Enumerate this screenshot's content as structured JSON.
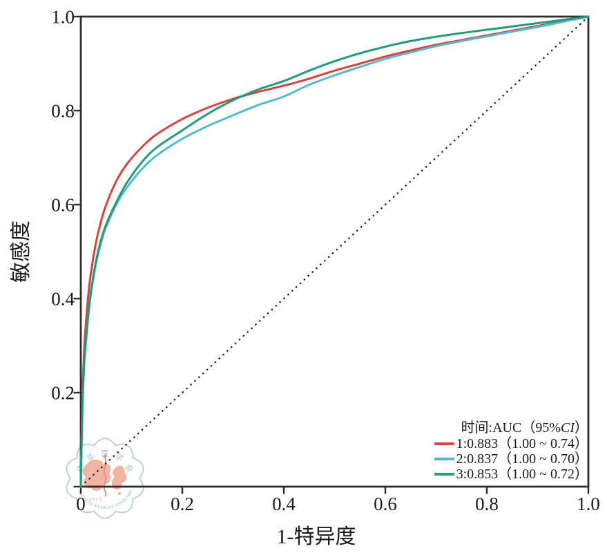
{
  "watermark": {
    "name": "chinese-medical-association-seal",
    "ring_text": "中华医学会",
    "bottom_text": "CHINESE MEDICAL ASSOCIATION",
    "year": "1915",
    "accent_color": "#f0ad99",
    "snake_color": "#d98b7a",
    "outline_color": "#b5cbd4",
    "ring_char_color": "#a3bac5",
    "bottom_text_color": "#8fa9b4",
    "year_color": "#dd9c89"
  },
  "chart_data": {
    "type": "line",
    "title": "",
    "xlabel": "1-特异度",
    "ylabel": "敏感度",
    "xlim": [
      0,
      1
    ],
    "ylim": [
      0,
      1
    ],
    "grid": false,
    "axis_color": "#332b28",
    "text_color": "#1a1a1a",
    "xticks": [
      0,
      0.2,
      0.4,
      0.6,
      0.8,
      1.0
    ],
    "yticks": [
      0,
      0.2,
      0.4,
      0.6,
      0.8,
      1.0
    ],
    "xtick_labels": [
      "0",
      "0.2",
      "0.4",
      "0.6",
      "0.8",
      "1.0"
    ],
    "ytick_labels": [
      "",
      "0.2",
      "0.4",
      "0.6",
      "0.8",
      "1.0"
    ],
    "diagonal_reference": {
      "style": "dotted",
      "color": "#1c1c1c",
      "from": [
        0,
        0
      ],
      "to": [
        1,
        1
      ]
    },
    "legend": {
      "position": "bottom-right",
      "title_prefix": "时间:AUC（95%",
      "title_italic": "CI",
      "title_suffix": "）",
      "entries": [
        {
          "label": "1:0.883（1.00 ~ 0.74）",
          "series": "1"
        },
        {
          "label": "2:0.837（1.00 ~ 0.70）",
          "series": "2"
        },
        {
          "label": "3:0.853（1.00 ~ 0.72）",
          "series": "3"
        }
      ]
    },
    "series": [
      {
        "name": "1",
        "auc": 0.883,
        "ci": "1.00 ~ 0.74",
        "color": "#d8423c",
        "points": [
          [
            0,
            0
          ],
          [
            0.002,
            0.13
          ],
          [
            0.004,
            0.22
          ],
          [
            0.007,
            0.3
          ],
          [
            0.01,
            0.345
          ],
          [
            0.015,
            0.41
          ],
          [
            0.02,
            0.455
          ],
          [
            0.03,
            0.52
          ],
          [
            0.04,
            0.565
          ],
          [
            0.05,
            0.6
          ],
          [
            0.07,
            0.65
          ],
          [
            0.09,
            0.685
          ],
          [
            0.12,
            0.722
          ],
          [
            0.15,
            0.75
          ],
          [
            0.2,
            0.782
          ],
          [
            0.25,
            0.806
          ],
          [
            0.3,
            0.825
          ],
          [
            0.35,
            0.84
          ],
          [
            0.4,
            0.853
          ],
          [
            0.45,
            0.868
          ],
          [
            0.5,
            0.885
          ],
          [
            0.55,
            0.9
          ],
          [
            0.6,
            0.915
          ],
          [
            0.65,
            0.928
          ],
          [
            0.7,
            0.94
          ],
          [
            0.75,
            0.95
          ],
          [
            0.8,
            0.96
          ],
          [
            0.85,
            0.97
          ],
          [
            0.9,
            0.98
          ],
          [
            0.95,
            0.99
          ],
          [
            1,
            1
          ]
        ]
      },
      {
        "name": "2",
        "auc": 0.837,
        "ci": "1.00 ~ 0.70",
        "color": "#55b9d1",
        "points": [
          [
            0,
            0
          ],
          [
            0.002,
            0.115
          ],
          [
            0.004,
            0.195
          ],
          [
            0.007,
            0.265
          ],
          [
            0.01,
            0.305
          ],
          [
            0.015,
            0.365
          ],
          [
            0.02,
            0.41
          ],
          [
            0.03,
            0.475
          ],
          [
            0.04,
            0.52
          ],
          [
            0.05,
            0.553
          ],
          [
            0.07,
            0.6
          ],
          [
            0.09,
            0.635
          ],
          [
            0.12,
            0.675
          ],
          [
            0.15,
            0.705
          ],
          [
            0.2,
            0.74
          ],
          [
            0.25,
            0.767
          ],
          [
            0.3,
            0.79
          ],
          [
            0.35,
            0.812
          ],
          [
            0.4,
            0.83
          ],
          [
            0.45,
            0.855
          ],
          [
            0.5,
            0.875
          ],
          [
            0.55,
            0.893
          ],
          [
            0.6,
            0.91
          ],
          [
            0.65,
            0.924
          ],
          [
            0.7,
            0.937
          ],
          [
            0.75,
            0.948
          ],
          [
            0.8,
            0.958
          ],
          [
            0.85,
            0.968
          ],
          [
            0.9,
            0.978
          ],
          [
            0.95,
            0.989
          ],
          [
            1,
            1
          ]
        ]
      },
      {
        "name": "3",
        "auc": 0.853,
        "ci": "1.00 ~ 0.72",
        "color": "#1f9c78",
        "points": [
          [
            0,
            0
          ],
          [
            0.002,
            0.12
          ],
          [
            0.004,
            0.2
          ],
          [
            0.007,
            0.27
          ],
          [
            0.01,
            0.31
          ],
          [
            0.015,
            0.37
          ],
          [
            0.02,
            0.415
          ],
          [
            0.03,
            0.48
          ],
          [
            0.04,
            0.525
          ],
          [
            0.05,
            0.558
          ],
          [
            0.07,
            0.605
          ],
          [
            0.09,
            0.645
          ],
          [
            0.12,
            0.69
          ],
          [
            0.15,
            0.722
          ],
          [
            0.2,
            0.758
          ],
          [
            0.25,
            0.793
          ],
          [
            0.3,
            0.822
          ],
          [
            0.35,
            0.845
          ],
          [
            0.4,
            0.863
          ],
          [
            0.45,
            0.885
          ],
          [
            0.5,
            0.905
          ],
          [
            0.55,
            0.922
          ],
          [
            0.6,
            0.936
          ],
          [
            0.65,
            0.948
          ],
          [
            0.7,
            0.957
          ],
          [
            0.75,
            0.965
          ],
          [
            0.8,
            0.972
          ],
          [
            0.85,
            0.979
          ],
          [
            0.9,
            0.986
          ],
          [
            0.95,
            0.993
          ],
          [
            1,
            1
          ]
        ]
      }
    ]
  }
}
